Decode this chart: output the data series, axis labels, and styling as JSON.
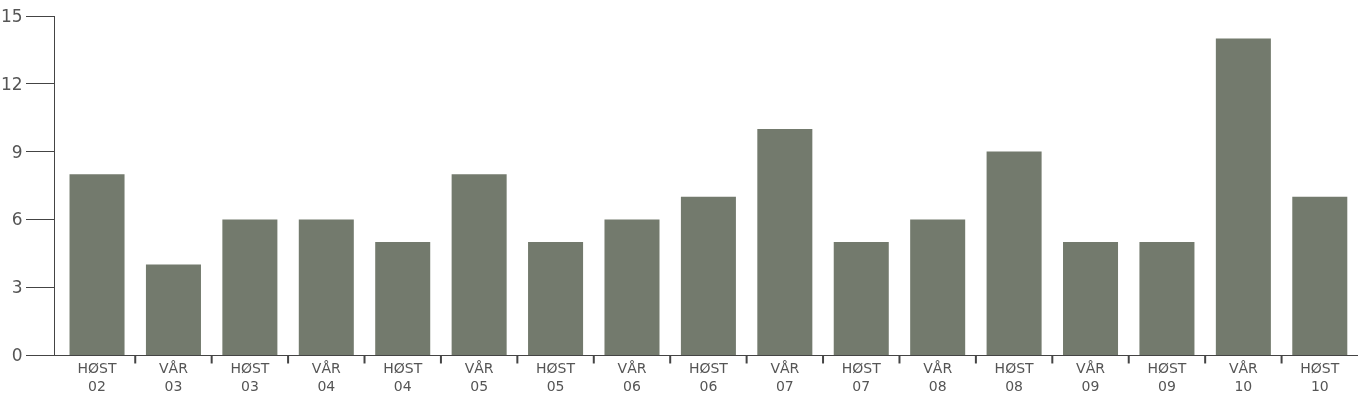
{
  "chart_data": {
    "type": "bar",
    "categories": [
      "HØST 02",
      "VÅR 03",
      "HØST 03",
      "VÅR 04",
      "HØST 04",
      "VÅR 05",
      "HØST 05",
      "VÅR 06",
      "HØST 06",
      "VÅR 07",
      "HØST 07",
      "VÅR 08",
      "HØST 08",
      "VÅR 09",
      "HØST 09",
      "VÅR 10",
      "HØST 10"
    ],
    "values": [
      8,
      4,
      6,
      6,
      5,
      8,
      5,
      6,
      7,
      10,
      5,
      6,
      9,
      5,
      5,
      14,
      7
    ],
    "color": "#737a6d",
    "ylim": [
      0,
      15
    ],
    "yticks": [
      0,
      3,
      6,
      9,
      12,
      15
    ],
    "grid": false,
    "legend": false
  }
}
